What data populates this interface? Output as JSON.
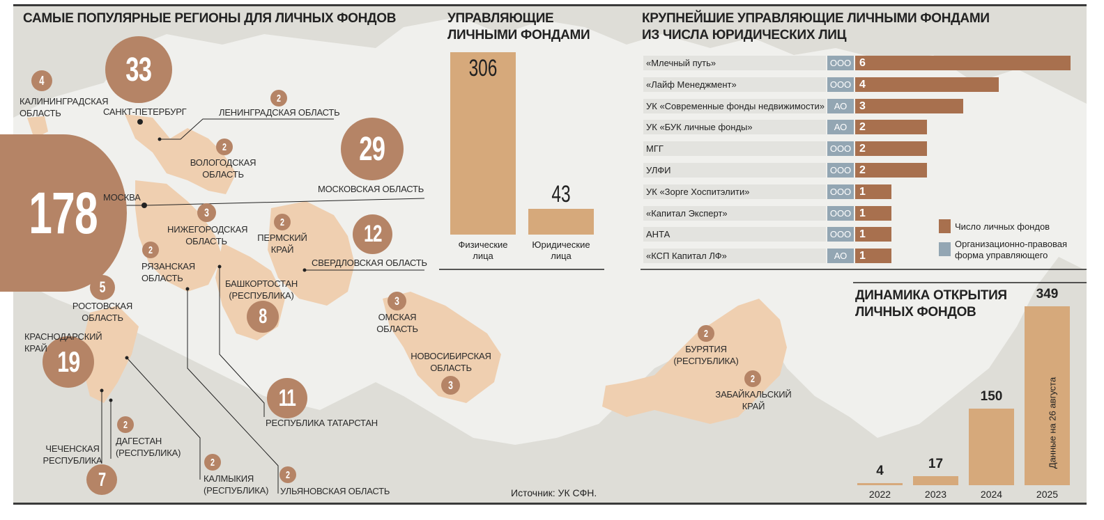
{
  "titles": {
    "regions": "САМЫЕ ПОПУЛЯРНЫЕ РЕГИОНЫ ДЛЯ ЛИЧНЫХ ФОНДОВ",
    "managers_l1": "УПРАВЛЯЮЩИЕ",
    "managers_l2": "ЛИЧНЫМИ ФОНДАМИ",
    "largest_l1": "КРУПНЕЙШИЕ УПРАВЛЯЮЩИЕ ЛИЧНЫМИ ФОНДАМИ",
    "largest_l2": "ИЗ ЧИСЛА ЮРИДИЧЕСКИХ ЛИЦ",
    "dynamics_l1": "ДИНАМИКА ОТКРЫТИЯ",
    "dynamics_l2": "ЛИЧНЫХ ФОНДОВ"
  },
  "source": "Источник: УК СФН.",
  "colors": {
    "map_bg": "#deddd7",
    "region_fill": "#efcfb0",
    "circle": "#b58466",
    "bar_fill": "#d6a97b",
    "fund_bar": "#a8704e",
    "form_box": "#93a6b3"
  },
  "chart_data": [
    {
      "type": "map",
      "title": "САМЫЕ ПОПУЛЯРНЫЕ РЕГИОНЫ ДЛЯ ЛИЧНЫХ ФОНДОВ",
      "regions": [
        {
          "name": "Москва",
          "value": 178
        },
        {
          "name": "Санкт-Петербург",
          "value": 33
        },
        {
          "name": "Московская область",
          "value": 29
        },
        {
          "name": "Краснодарский край",
          "value": 19
        },
        {
          "name": "Свердловская область",
          "value": 12
        },
        {
          "name": "Республика Татарстан",
          "value": 11
        },
        {
          "name": "Башкортостан (Республика)",
          "value": 8
        },
        {
          "name": "Чеченская Республика",
          "value": 7
        },
        {
          "name": "Ростовская область",
          "value": 5
        },
        {
          "name": "Калининградская область",
          "value": 4
        },
        {
          "name": "Нижегородская область",
          "value": 3
        },
        {
          "name": "Омская область",
          "value": 3
        },
        {
          "name": "Новосибирская область",
          "value": 3
        },
        {
          "name": "Ленинградская область",
          "value": 2
        },
        {
          "name": "Вологодская область",
          "value": 2
        },
        {
          "name": "Пермский край",
          "value": 2
        },
        {
          "name": "Рязанская область",
          "value": 2
        },
        {
          "name": "Дагестан (Республика)",
          "value": 2
        },
        {
          "name": "Калмыкия (Республика)",
          "value": 2
        },
        {
          "name": "Ульяновская область",
          "value": 2
        },
        {
          "name": "Бурятия (Республика)",
          "value": 2
        },
        {
          "name": "Забайкальский край",
          "value": 2
        }
      ]
    },
    {
      "type": "bar",
      "title": "УПРАВЛЯЮЩИЕ ЛИЧНЫМИ ФОНДАМИ",
      "categories": [
        "Физические лица",
        "Юридические лица"
      ],
      "values": [
        306,
        43
      ],
      "ylim": [
        0,
        306
      ]
    },
    {
      "type": "bar",
      "orientation": "horizontal",
      "title": "КРУПНЕЙШИЕ УПРАВЛЯЮЩИЕ ЛИЧНЫМИ ФОНДАМИ ИЗ ЧИСЛА ЮРИДИЧЕСКИХ ЛИЦ",
      "categories": [
        "«Млечный путь»",
        "«Лайф Менеджмент»",
        "УК «Современные фонды недвижимости»",
        "УК «БУК личные фонды»",
        "МГГ",
        "УЛФИ",
        "УК «Зорге Хоспитэлити»",
        "«Капитал Эксперт»",
        "АНТА",
        "«КСП Капитал ЛФ»"
      ],
      "forms": [
        "ООО",
        "ООО",
        "АО",
        "АО",
        "ООО",
        "ООО",
        "ООО",
        "ООО",
        "ООО",
        "АО"
      ],
      "values": [
        6,
        4,
        3,
        2,
        2,
        2,
        1,
        1,
        1,
        1
      ],
      "xlim": [
        0,
        6
      ],
      "legend": [
        "Число личных фондов",
        "Организационно-правовая форма управляющего"
      ],
      "legend_position": "bottom-right"
    },
    {
      "type": "bar",
      "title": "ДИНАМИКА ОТКРЫТИЯ ЛИЧНЫХ ФОНДОВ",
      "categories": [
        "2022",
        "2023",
        "2024",
        "2025"
      ],
      "values": [
        4,
        17,
        150,
        349
      ],
      "ylim": [
        0,
        349
      ],
      "annotation": "Данные на 26 августа"
    }
  ],
  "map_labels": {
    "moscow": "МОСКВА",
    "spb": "САНКТ-ПЕТЕРБУРГ",
    "kalin_l1": "КАЛИНИНГРАДСКАЯ",
    "kalin_l2": "ОБЛАСТЬ",
    "len": "ЛЕНИНГРАДСКАЯ ОБЛАСТЬ",
    "volog_l1": "ВОЛОГОДСКАЯ",
    "volog_l2": "ОБЛАСТЬ",
    "mosobl": "МОСКОВСКАЯ ОБЛАСТЬ",
    "nizh_l1": "НИЖЕГОРОДСКАЯ",
    "nizh_l2": "ОБЛАСТЬ",
    "perm_l1": "ПЕРМСКИЙ",
    "perm_l2": "КРАЙ",
    "sverd": "СВЕРДЛОВСКАЯ ОБЛАСТЬ",
    "ryaz_l1": "РЯЗАНСКАЯ",
    "ryaz_l2": "ОБЛАСТЬ",
    "bash_l1": "БАШКОРТОСТАН",
    "bash_l2": "(РЕСПУБЛИКА)",
    "rost_l1": "РОСТОВСКАЯ",
    "rost_l2": "ОБЛАСТЬ",
    "kras_l1": "КРАСНОДАРСКИЙ",
    "kras_l2": "КРАЙ",
    "tatar": "РЕСПУБЛИКА ТАТАРСТАН",
    "chech_l1": "ЧЕЧЕНСКАЯ",
    "chech_l2": "РЕСПУБЛИКА",
    "dag_l1": "ДАГЕСТАН",
    "dag_l2": "(РЕСПУБЛИКА)",
    "kalm_l1": "КАЛМЫКИЯ",
    "kalm_l2": "(РЕСПУБЛИКА)",
    "ulyan": "УЛЬЯНОВСКАЯ ОБЛАСТЬ",
    "omsk_l1": "ОМСКАЯ",
    "omsk_l2": "ОБЛАСТЬ",
    "novo_l1": "НОВОСИБИРСКАЯ",
    "novo_l2": "ОБЛАСТЬ",
    "bur_l1": "БУРЯТИЯ",
    "bur_l2": "(РЕСПУБЛИКА)",
    "zab_l1": "ЗАБАЙКАЛЬСКИЙ",
    "zab_l2": "КРАЙ"
  },
  "circle_values": {
    "moscow": "178",
    "spb": "33",
    "mosobl": "29",
    "kras": "19",
    "sverd": "12",
    "tatar": "11",
    "bash": "8",
    "chech": "7",
    "rost": "5",
    "kalin": "4",
    "nizh": "3",
    "omsk": "3",
    "novo": "3",
    "len": "2",
    "volog": "2",
    "perm": "2",
    "ryaz": "2",
    "dag": "2",
    "kalm": "2",
    "ulyan": "2",
    "bur": "2",
    "zab": "2"
  },
  "managers_labels": {
    "phys_l1": "Физические",
    "phys_l2": "лица",
    "jur_l1": "Юридические",
    "jur_l2": "лица",
    "phys_val": "306",
    "jur_val": "43"
  },
  "years": {
    "y2022": "2022",
    "y2023": "2023",
    "y2024": "2024",
    "y2025": "2025",
    "v2022": "4",
    "v2023": "17",
    "v2024": "150",
    "v2025": "349",
    "note": "Данные на 26 августа"
  },
  "legend": {
    "count": "Число личных фондов",
    "form_l1": "Организационно-правовая",
    "form_l2": "форма управляющего"
  }
}
